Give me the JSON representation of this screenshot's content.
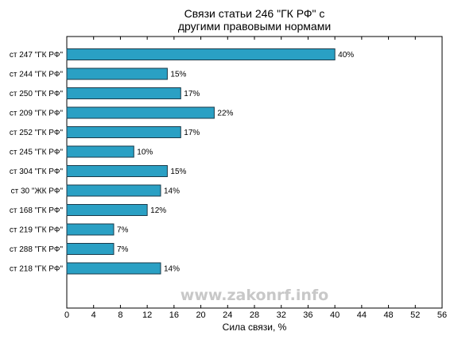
{
  "watermark": "www.zakonrf.info",
  "chart_data": {
    "type": "bar",
    "orientation": "horizontal",
    "title_lines": [
      "Связи статьи 246 \"ГК РФ\" с",
      "другими правовыми нормами"
    ],
    "xlabel": "Сила связи, %",
    "ylabel": "",
    "xlim": [
      0,
      56
    ],
    "xticks": [
      0,
      4,
      8,
      12,
      16,
      20,
      24,
      28,
      32,
      36,
      40,
      44,
      48,
      52,
      56
    ],
    "categories": [
      "ст 247 \"ГК РФ\"",
      "ст 244 \"ГК РФ\"",
      "ст 250 \"ГК РФ\"",
      "ст 209 \"ГК РФ\"",
      "ст 252 \"ГК РФ\"",
      "ст 245 \"ГК РФ\"",
      "ст 304 \"ГК РФ\"",
      "ст 30 \"ЖК РФ\"",
      "ст 168 \"ГК РФ\"",
      "ст 219 \"ГК РФ\"",
      "ст 288 \"ГК РФ\"",
      "ст 218 \"ГК РФ\""
    ],
    "values": [
      40,
      15,
      17,
      22,
      17,
      10,
      15,
      14,
      12,
      7,
      7,
      14
    ],
    "value_labels": [
      "40%",
      "15%",
      "17%",
      "22%",
      "17%",
      "10%",
      "15%",
      "14%",
      "12%",
      "7%",
      "7%",
      "14%"
    ],
    "bar_color": "#2aa0c4",
    "bar_edge_color": "#1a3a4a",
    "grid": false,
    "legend": "none"
  }
}
